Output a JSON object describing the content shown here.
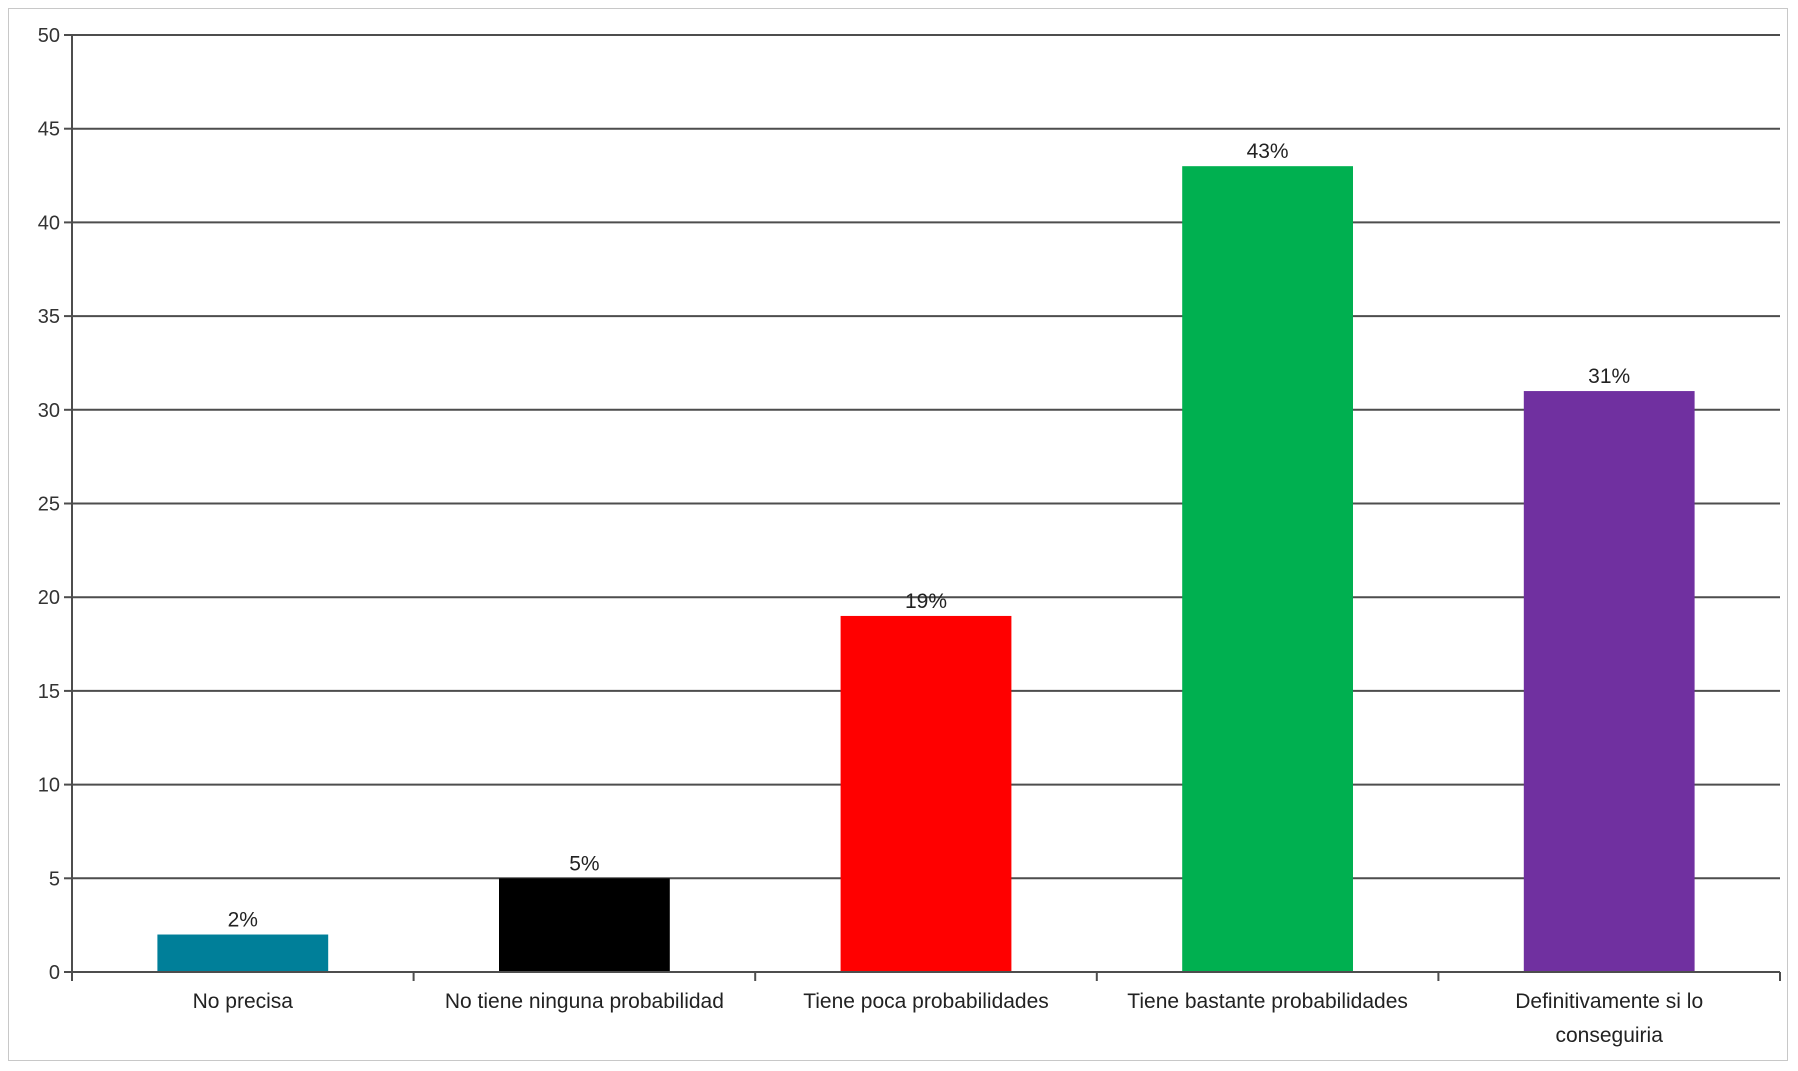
{
  "chart_data": {
    "type": "bar",
    "title": "",
    "xlabel": "",
    "ylabel": "",
    "ylim": [
      0,
      50
    ],
    "yticks": [
      "0",
      "5",
      "10",
      "15",
      "20",
      "25",
      "30",
      "35",
      "40",
      "45",
      "50"
    ],
    "grid": true,
    "legend": "none",
    "categories": [
      [
        "No precisa"
      ],
      [
        "No tiene ninguna probabilidad"
      ],
      [
        "Tiene poca probabilidades"
      ],
      [
        "Tiene bastante probabilidades"
      ],
      [
        "Definitivamente si lo",
        "conseguiria"
      ]
    ],
    "values": [
      2,
      5,
      19,
      43,
      31
    ],
    "data_labels": [
      "2%",
      "5%",
      "19%",
      "43%",
      "31%"
    ],
    "colors": [
      "#007f99",
      "#000000",
      "#ff0000",
      "#00b050",
      "#7030a0"
    ]
  }
}
